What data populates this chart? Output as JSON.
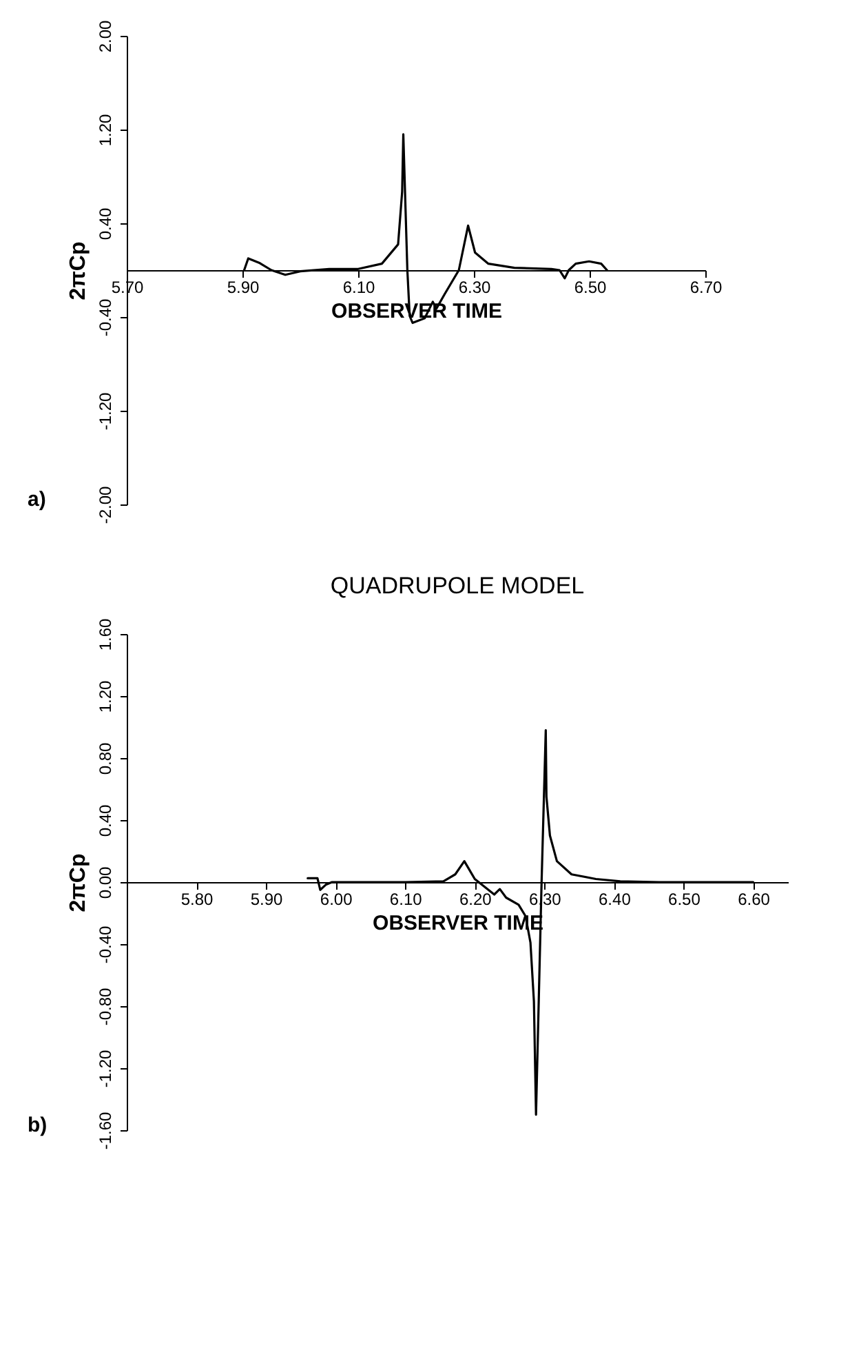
{
  "chart_data": [
    {
      "type": "line",
      "xlabel": "OBSERVER TIME",
      "ylabel": "2πCp",
      "annotations": [
        "a)"
      ],
      "xlim": [
        5.7,
        6.7
      ],
      "ylim": [
        -2.0,
        2.0
      ],
      "xticks": [
        {
          "value": 5.7,
          "label": "5.70"
        },
        {
          "value": 5.9,
          "label": "5.90"
        },
        {
          "value": 6.1,
          "label": "6.10"
        },
        {
          "value": 6.3,
          "label": "6.30"
        },
        {
          "value": 6.5,
          "label": "6.50"
        },
        {
          "value": 6.7,
          "label": "6.70"
        }
      ],
      "yticks": [
        {
          "value": -2.0,
          "label": "-2.00"
        },
        {
          "value": -1.2,
          "label": "-1.20"
        },
        {
          "value": -0.4,
          "label": "-0.40"
        },
        {
          "value": 0.4,
          "label": "0.40"
        },
        {
          "value": 1.2,
          "label": "1.20"
        },
        {
          "value": 2.0,
          "label": "2.00"
        }
      ],
      "series": [
        {
          "color": "#000000",
          "x": [
            5.903,
            5.91,
            5.93,
            5.95,
            5.974,
            6.0,
            6.05,
            6.1,
            6.141,
            6.169,
            6.176,
            6.178,
            6.185,
            6.189,
            6.194,
            6.215,
            6.229,
            6.235,
            6.25,
            6.274,
            6.29,
            6.302,
            6.325,
            6.37,
            6.434,
            6.448,
            6.457,
            6.464,
            6.476,
            6.499,
            6.52,
            6.53
          ],
          "values": [
            0.0,
            0.1,
            0.06,
            0.0,
            -0.04,
            -0.01,
            0.01,
            0.01,
            0.055,
            0.22,
            0.67,
            1.16,
            0.0,
            -0.39,
            -0.45,
            -0.41,
            -0.27,
            -0.33,
            -0.2,
            0.0,
            0.38,
            0.15,
            0.055,
            0.02,
            0.01,
            0.0,
            -0.07,
            0.0,
            0.055,
            0.075,
            0.055,
            0.0
          ]
        }
      ]
    },
    {
      "type": "line",
      "title": "QUADRUPOLE MODEL",
      "xlabel": "OBSERVER TIME",
      "ylabel": "2πCp",
      "annotations": [
        "b)"
      ],
      "xlim": [
        5.7,
        6.65
      ],
      "ylim": [
        -1.6,
        1.6
      ],
      "xticks": [
        {
          "value": 5.8,
          "label": "5.80"
        },
        {
          "value": 5.9,
          "label": "5.90"
        },
        {
          "value": 6.0,
          "label": "6.00"
        },
        {
          "value": 6.1,
          "label": "6.10"
        },
        {
          "value": 6.2,
          "label": "6.20"
        },
        {
          "value": 6.3,
          "label": "6.30"
        },
        {
          "value": 6.4,
          "label": "6.40"
        },
        {
          "value": 6.5,
          "label": "6.50"
        },
        {
          "value": 6.6,
          "label": "6.60"
        }
      ],
      "yticks": [
        {
          "value": -1.6,
          "label": "-1.60"
        },
        {
          "value": -1.2,
          "label": "-1.20"
        },
        {
          "value": -0.8,
          "label": "-0.80"
        },
        {
          "value": -0.4,
          "label": "-0.40"
        },
        {
          "value": 0.0,
          "label": "0.00"
        },
        {
          "value": 0.4,
          "label": "0.40"
        },
        {
          "value": 0.8,
          "label": "0.80"
        },
        {
          "value": 1.2,
          "label": "1.20"
        },
        {
          "value": 1.6,
          "label": "1.60"
        }
      ],
      "series": [
        {
          "color": "#000000",
          "x": [
            5.96,
            5.974,
            5.978,
            5.986,
            5.995,
            6.05,
            6.1,
            6.155,
            6.172,
            6.185,
            6.2,
            6.214,
            6.228,
            6.236,
            6.245,
            6.263,
            6.273,
            6.28,
            6.285,
            6.288,
            6.296,
            6.302,
            6.303,
            6.308,
            6.318,
            6.339,
            6.374,
            6.409,
            6.465,
            6.6
          ],
          "values": [
            0.025,
            0.025,
            -0.05,
            -0.017,
            0.0,
            0.0,
            0.0,
            0.005,
            0.05,
            0.135,
            0.02,
            -0.03,
            -0.08,
            -0.045,
            -0.1,
            -0.146,
            -0.22,
            -0.39,
            -0.77,
            -1.5,
            0.0,
            0.98,
            0.55,
            0.3,
            0.135,
            0.05,
            0.02,
            0.005,
            0.0,
            0.0
          ]
        }
      ]
    }
  ]
}
